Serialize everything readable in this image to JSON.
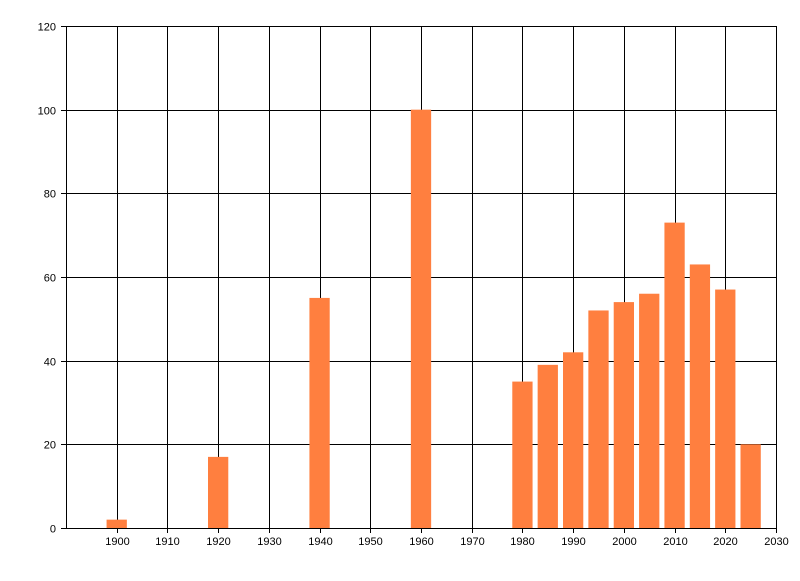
{
  "chart_data": {
    "type": "bar",
    "title": "",
    "xlabel": "",
    "ylabel": "",
    "xlim": [
      1890,
      2030
    ],
    "ylim": [
      0,
      120
    ],
    "x_ticks": [
      "1900",
      "1910",
      "1920",
      "1930",
      "1940",
      "1950",
      "1960",
      "1970",
      "1980",
      "1990",
      "2000",
      "2010",
      "2020",
      "2030"
    ],
    "y_ticks": [
      "0",
      "20",
      "40",
      "60",
      "80",
      "100",
      "120"
    ],
    "grid": true,
    "bar_color": "#FF7F3F",
    "series": [
      {
        "x": [
          1900,
          1920,
          1940,
          1960,
          1980,
          1985,
          1990,
          1995,
          2000,
          2005,
          2010,
          2015,
          2020,
          2025
        ],
        "values": [
          2,
          17,
          55,
          100,
          35,
          39,
          42,
          52,
          54,
          56,
          73,
          63,
          57,
          20
        ]
      }
    ]
  }
}
